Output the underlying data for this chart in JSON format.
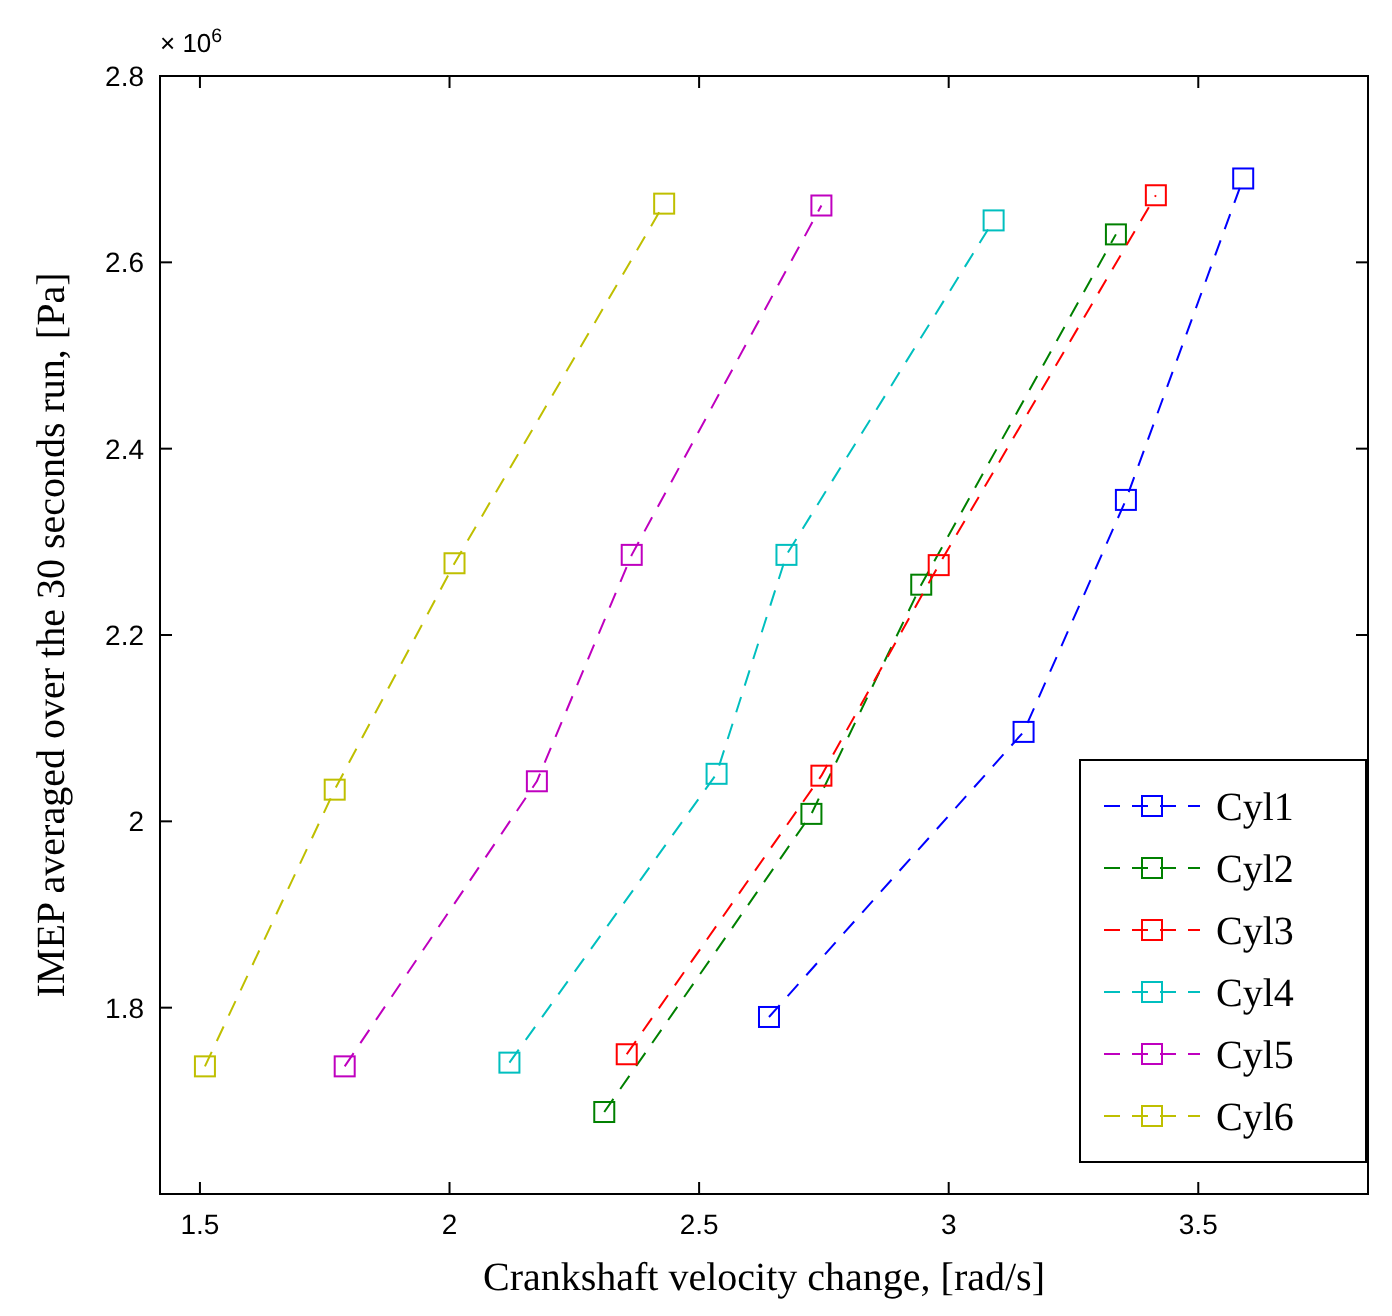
{
  "chart_data": {
    "type": "line",
    "xlabel": "Crankshaft velocity change, [rad/s]",
    "ylabel": "IMEP averaged over the 30 seconds run, [Pa]",
    "annotations": [
      "× 10$^{6}$"
    ],
    "xlim": [
      1.42,
      3.84
    ],
    "ylim": [
      1.6,
      2.8
    ],
    "xticks": [
      1.5,
      2,
      2.5,
      3,
      3.5
    ],
    "yticks": [
      1.8,
      2,
      2.2,
      2.4,
      2.6,
      2.8
    ],
    "marker": "square",
    "line_style": "dashed",
    "grid": false,
    "legend": "bottom right",
    "series": [
      {
        "name": "Cyl1",
        "color": "#0000ff",
        "x": [
          2.64,
          3.15,
          3.355,
          3.59
        ],
        "values": [
          1.79,
          2.096,
          2.345,
          2.69
        ]
      },
      {
        "name": "Cyl2",
        "color": "#008000",
        "x": [
          2.31,
          2.725,
          2.945,
          3.335
        ],
        "values": [
          1.688,
          2.008,
          2.254,
          2.63
        ]
      },
      {
        "name": "Cyl3",
        "color": "#ff0000",
        "x": [
          2.355,
          2.745,
          2.98,
          3.415
        ],
        "values": [
          1.75,
          2.049,
          2.275,
          2.672
        ]
      },
      {
        "name": "Cyl4",
        "color": "#00bfbf",
        "x": [
          2.12,
          2.535,
          2.675,
          3.09
        ],
        "values": [
          1.741,
          2.051,
          2.286,
          2.645
        ]
      },
      {
        "name": "Cyl5",
        "color": "#bf00bf",
        "x": [
          1.79,
          2.175,
          2.365,
          2.745
        ],
        "values": [
          1.737,
          2.043,
          2.286,
          2.661
        ]
      },
      {
        "name": "Cyl6",
        "color": "#bfbf00",
        "x": [
          1.51,
          1.77,
          2.01,
          2.43
        ],
        "values": [
          1.737,
          2.034,
          2.277,
          2.663
        ]
      }
    ]
  }
}
